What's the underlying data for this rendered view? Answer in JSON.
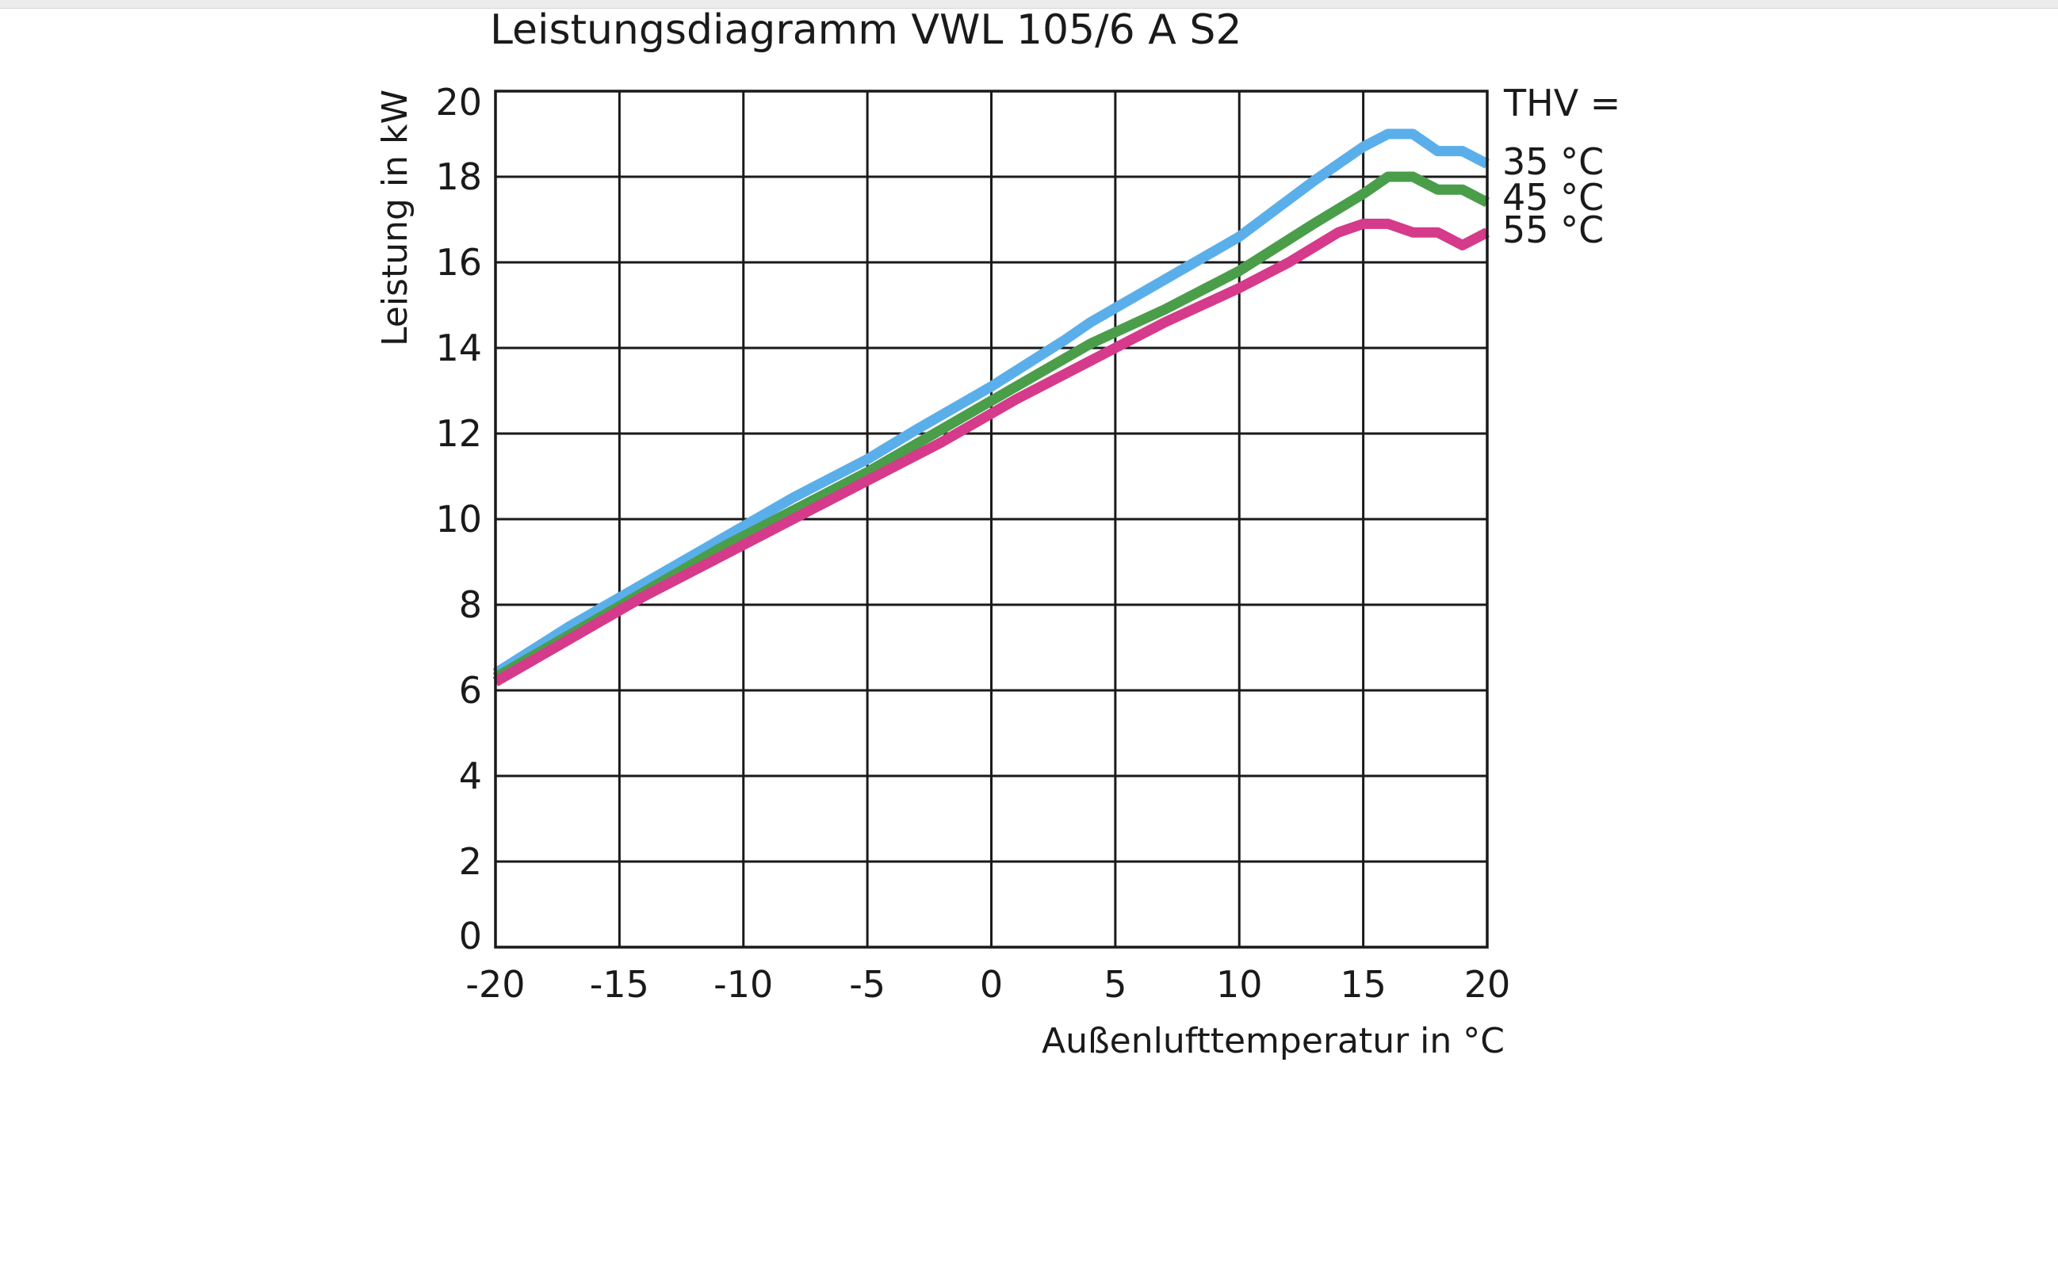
{
  "chart_data": {
    "type": "line",
    "title": "Leistungsdiagramm VWL 105/6 A S2",
    "xlabel": "Außenlufttemperatur  in °C",
    "ylabel": "Leistung in kW",
    "xlim": [
      -20,
      20
    ],
    "ylim": [
      0,
      20
    ],
    "xticks": [
      "-20",
      "-15",
      "-10",
      "-5",
      "0",
      "5",
      "10",
      "15",
      "20"
    ],
    "yticks": [
      "0",
      "2",
      "4",
      "6",
      "8",
      "10",
      "12",
      "14",
      "16",
      "18",
      "20"
    ],
    "grid": true,
    "legend_title": "THV =",
    "legend_position": "right",
    "series": [
      {
        "name": "35 °C",
        "color": "#5aafea",
        "points": [
          [
            -20,
            6.4
          ],
          [
            -17,
            7.5
          ],
          [
            -14,
            8.5
          ],
          [
            -11,
            9.5
          ],
          [
            -8,
            10.5
          ],
          [
            -5,
            11.4
          ],
          [
            -3,
            12.1
          ],
          [
            0,
            13.1
          ],
          [
            3,
            14.2
          ],
          [
            4,
            14.6
          ],
          [
            7,
            15.6
          ],
          [
            10,
            16.6
          ],
          [
            13,
            17.9
          ],
          [
            15,
            18.7
          ],
          [
            16,
            19.0
          ],
          [
            17,
            19.0
          ],
          [
            18,
            18.6
          ],
          [
            19,
            18.6
          ],
          [
            20,
            18.3
          ]
        ]
      },
      {
        "name": "45 °C",
        "color": "#4a9e4a",
        "points": [
          [
            -20,
            6.3
          ],
          [
            -17,
            7.3
          ],
          [
            -14,
            8.3
          ],
          [
            -11,
            9.3
          ],
          [
            -8,
            10.2
          ],
          [
            -5,
            11.1
          ],
          [
            -2,
            12.1
          ],
          [
            1,
            13.1
          ],
          [
            4,
            14.1
          ],
          [
            7,
            14.9
          ],
          [
            10,
            15.8
          ],
          [
            13,
            16.9
          ],
          [
            15,
            17.6
          ],
          [
            16,
            18.0
          ],
          [
            17,
            18.0
          ],
          [
            18,
            17.7
          ],
          [
            19,
            17.7
          ],
          [
            20,
            17.4
          ]
        ]
      },
      {
        "name": "55 °C",
        "color": "#d63a8a",
        "points": [
          [
            -20,
            6.2
          ],
          [
            -17,
            7.2
          ],
          [
            -14,
            8.2
          ],
          [
            -11,
            9.1
          ],
          [
            -8,
            10.0
          ],
          [
            -5,
            10.9
          ],
          [
            -2,
            11.8
          ],
          [
            1,
            12.8
          ],
          [
            4,
            13.7
          ],
          [
            7,
            14.6
          ],
          [
            10,
            15.4
          ],
          [
            12,
            16.0
          ],
          [
            14,
            16.7
          ],
          [
            15,
            16.9
          ],
          [
            16,
            16.9
          ],
          [
            17,
            16.7
          ],
          [
            18,
            16.7
          ],
          [
            19,
            16.4
          ],
          [
            20,
            16.7
          ]
        ]
      }
    ]
  }
}
